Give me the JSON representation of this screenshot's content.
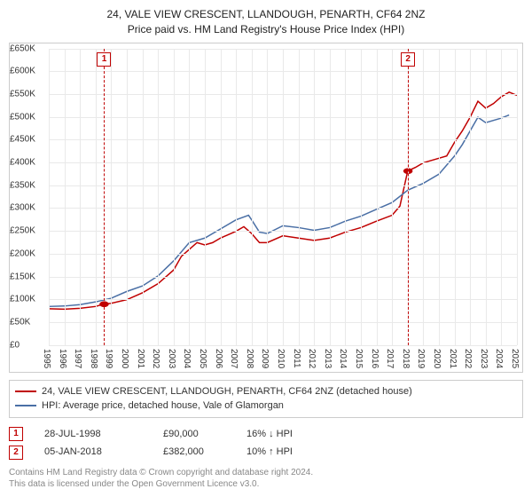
{
  "title": {
    "line1": "24, VALE VIEW CRESCENT, LLANDOUGH, PENARTH, CF64 2NZ",
    "line2": "Price paid vs. HM Land Registry's House Price Index (HPI)"
  },
  "chart": {
    "type": "line",
    "background_color": "#ffffff",
    "grid_color": "#e9e9e9",
    "ylim": [
      0,
      650000
    ],
    "ytick_step": 50000,
    "ytick_labels": [
      "£0",
      "£50K",
      "£100K",
      "£150K",
      "£200K",
      "£250K",
      "£300K",
      "£350K",
      "£400K",
      "£450K",
      "£500K",
      "£550K",
      "£600K",
      "£650K"
    ],
    "x_years": [
      1995,
      1996,
      1997,
      1998,
      1999,
      2000,
      2001,
      2002,
      2003,
      2004,
      2005,
      2006,
      2007,
      2008,
      2009,
      2010,
      2011,
      2012,
      2013,
      2014,
      2015,
      2016,
      2017,
      2018,
      2019,
      2020,
      2021,
      2022,
      2023,
      2024,
      2025
    ],
    "series": [
      {
        "name": "property",
        "label": "24, VALE VIEW CRESCENT, LLANDOUGH, PENARTH, CF64 2NZ (detached house)",
        "color": "#c00000",
        "values": {
          "1995": 80000,
          "1996": 79000,
          "1997": 81000,
          "1998": 85000,
          "1998.5": 90000,
          "1999": 92000,
          "2000": 100000,
          "2001": 115000,
          "2002": 135000,
          "2003": 165000,
          "2003.5": 195000,
          "2004": 210000,
          "2004.5": 225000,
          "2005": 220000,
          "2005.5": 225000,
          "2006": 235000,
          "2007": 250000,
          "2007.5": 260000,
          "2008": 245000,
          "2008.5": 225000,
          "2009": 225000,
          "2010": 240000,
          "2011": 235000,
          "2012": 230000,
          "2013": 235000,
          "2014": 248000,
          "2015": 258000,
          "2016": 272000,
          "2017": 285000,
          "2017.5": 305000,
          "2018": 382000,
          "2018.5": 390000,
          "2019": 400000,
          "2020": 410000,
          "2020.5": 415000,
          "2021": 445000,
          "2021.5": 470000,
          "2022": 500000,
          "2022.5": 535000,
          "2023": 520000,
          "2023.5": 530000,
          "2024": 545000,
          "2024.5": 555000,
          "2025": 548000
        }
      },
      {
        "name": "hpi",
        "label": "HPI: Average price, detached house, Vale of Glamorgan",
        "color": "#4a6fa5",
        "values": {
          "1995": 85000,
          "1996": 86000,
          "1997": 89000,
          "1998": 95000,
          "1999": 103000,
          "2000": 118000,
          "2001": 130000,
          "2002": 152000,
          "2003": 185000,
          "2004": 225000,
          "2005": 235000,
          "2006": 255000,
          "2007": 275000,
          "2007.8": 285000,
          "2008": 275000,
          "2008.5": 248000,
          "2009": 245000,
          "2010": 262000,
          "2011": 258000,
          "2012": 252000,
          "2013": 258000,
          "2014": 272000,
          "2015": 283000,
          "2016": 298000,
          "2017": 313000,
          "2018": 340000,
          "2019": 355000,
          "2020": 375000,
          "2021": 415000,
          "2021.5": 440000,
          "2022": 470000,
          "2022.5": 500000,
          "2023": 488000,
          "2024": 498000,
          "2024.5": 505000
        }
      }
    ],
    "transactions": [
      {
        "n": 1,
        "date_x": 1998.55,
        "price": 90000,
        "color": "#c00000"
      },
      {
        "n": 2,
        "date_x": 2018.02,
        "price": 382000,
        "color": "#c00000"
      }
    ],
    "axis_fontsize": 10
  },
  "legend": {
    "items": [
      {
        "color": "#c00000",
        "text": "24, VALE VIEW CRESCENT, LLANDOUGH, PENARTH, CF64 2NZ (detached house)"
      },
      {
        "color": "#4a6fa5",
        "text": "HPI: Average price, detached house, Vale of Glamorgan"
      }
    ]
  },
  "transaction_rows": [
    {
      "n": 1,
      "color": "#c00000",
      "date": "28-JUL-1998",
      "price": "£90,000",
      "delta": "16% ↓ HPI"
    },
    {
      "n": 2,
      "color": "#c00000",
      "date": "05-JAN-2018",
      "price": "£382,000",
      "delta": "10% ↑ HPI"
    }
  ],
  "footer": {
    "line1": "Contains HM Land Registry data © Crown copyright and database right 2024.",
    "line2": "This data is licensed under the Open Government Licence v3.0."
  }
}
